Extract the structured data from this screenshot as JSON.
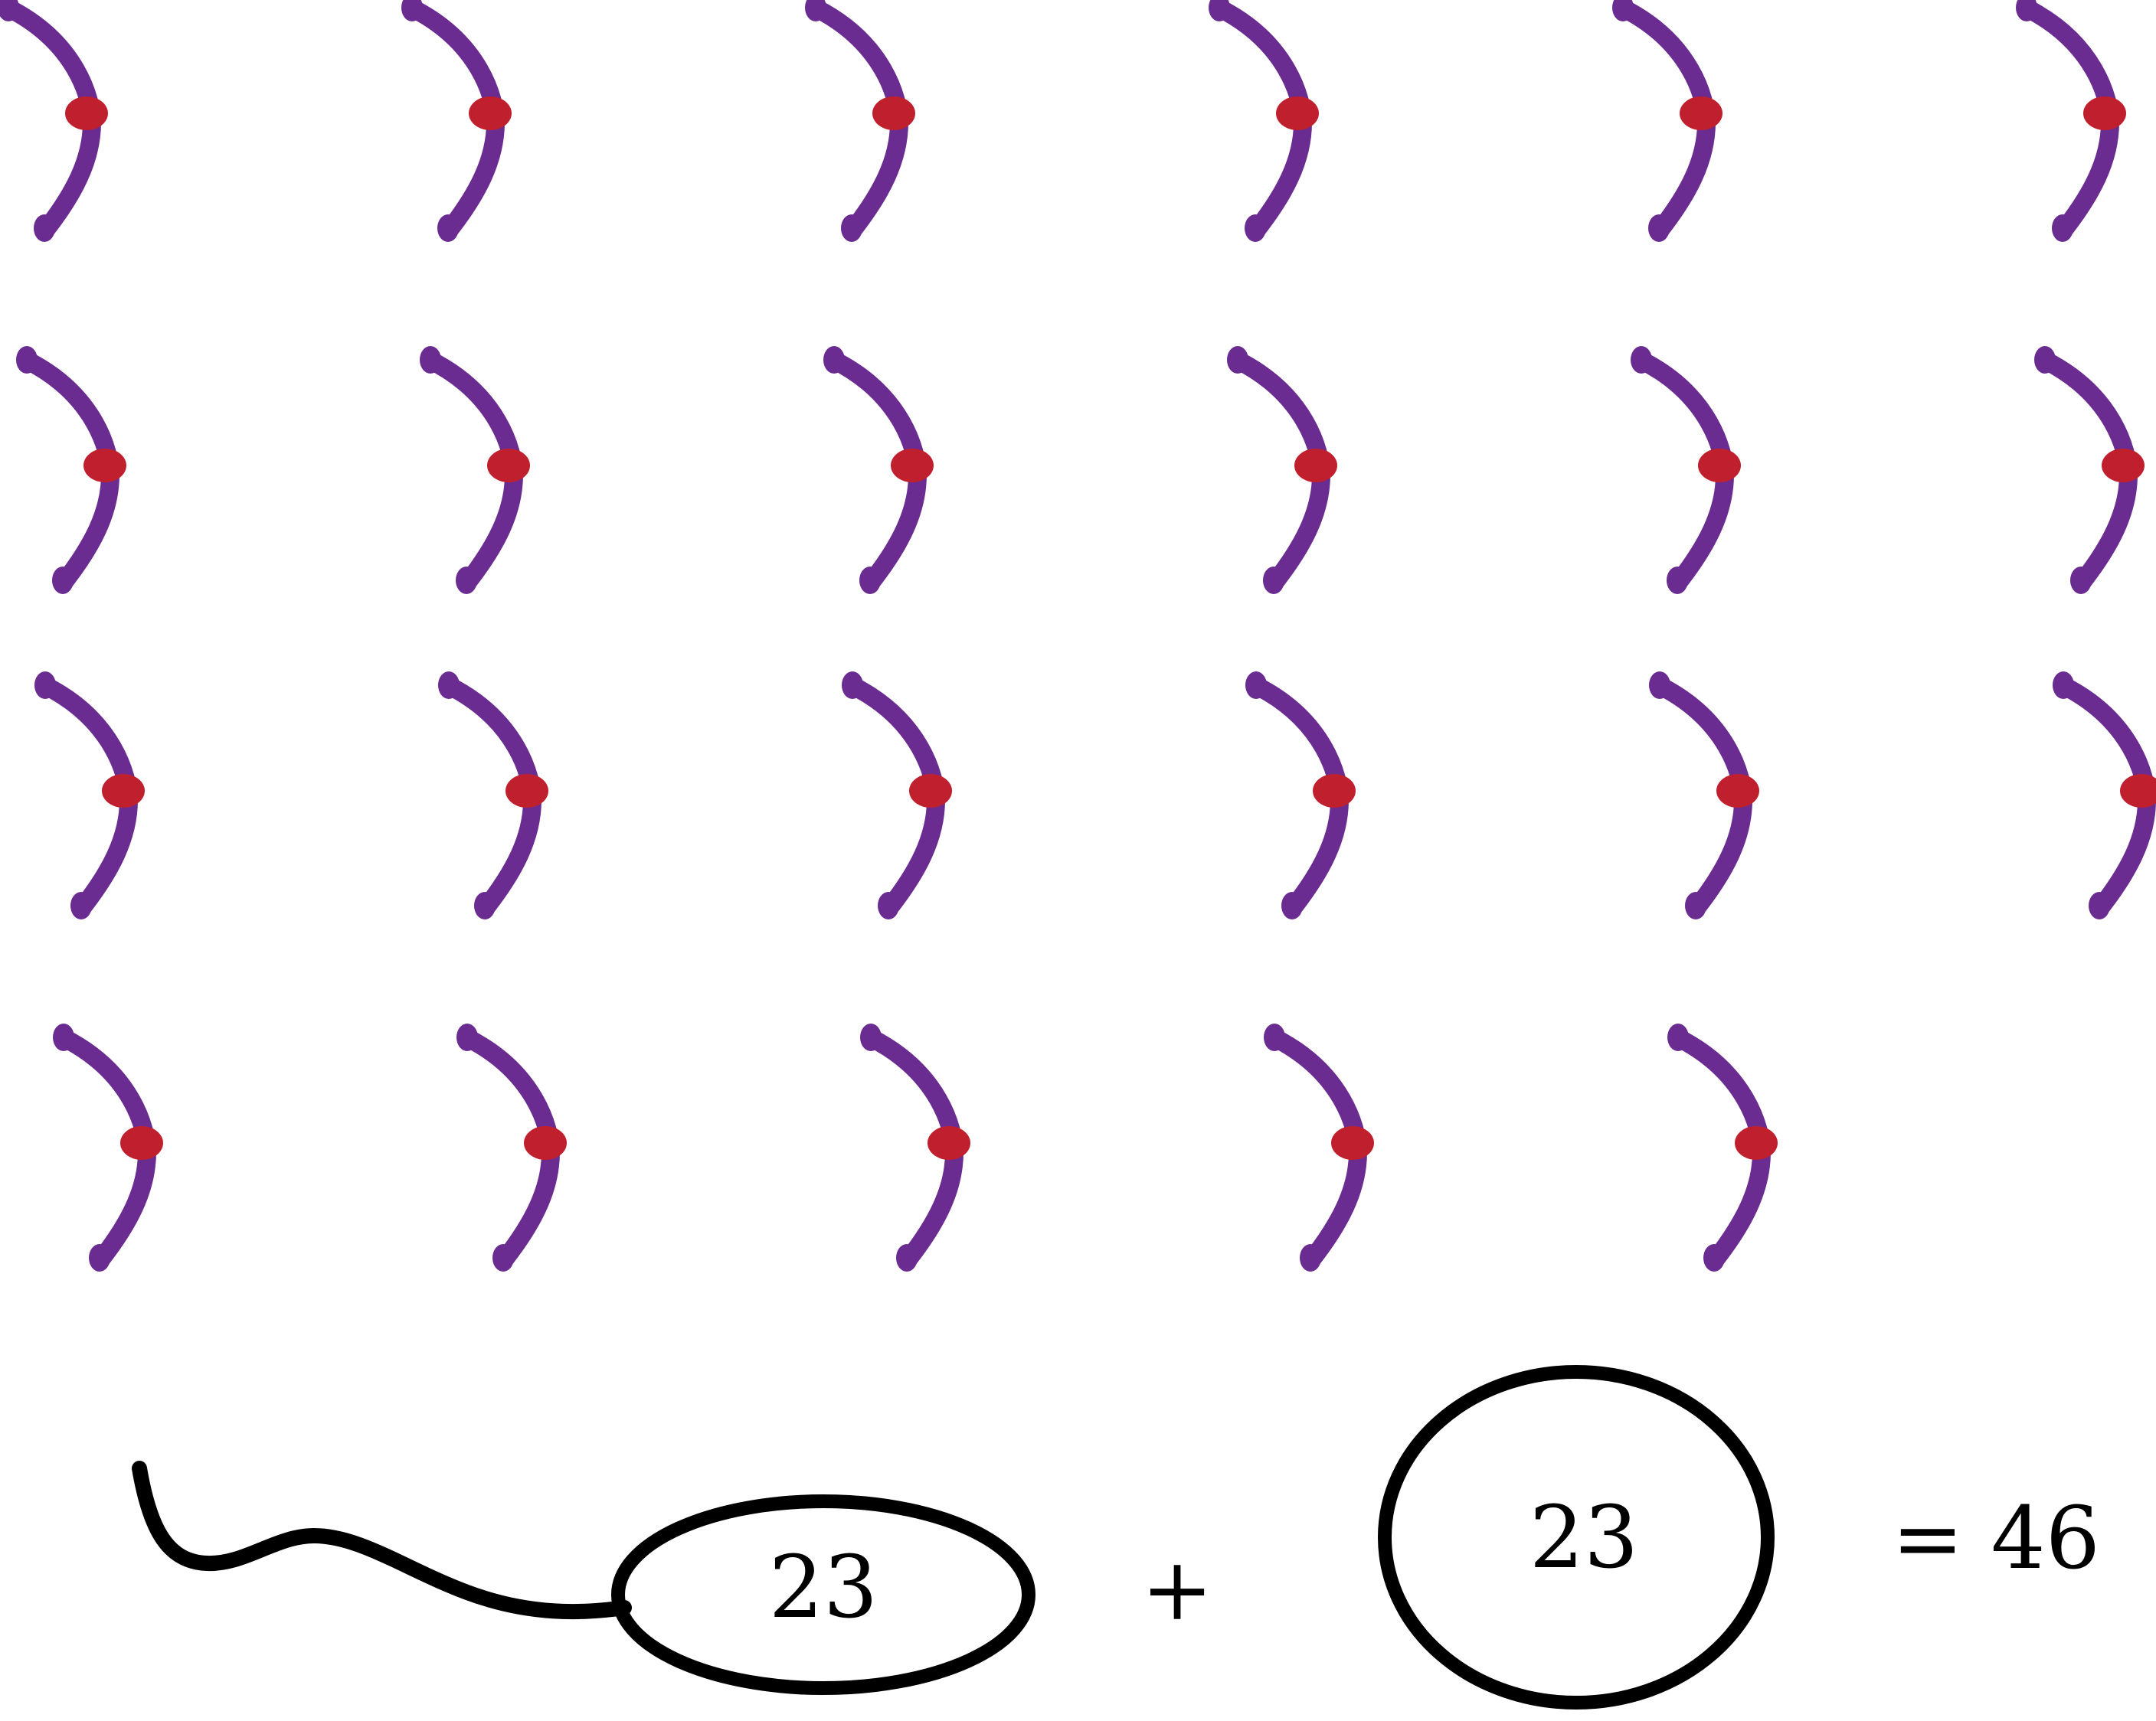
{
  "figure": {
    "rows": [
      {
        "count": 6
      },
      {
        "count": 6
      },
      {
        "count": 6
      },
      {
        "count": 5
      }
    ],
    "total_items": 23,
    "colors": {
      "arc": "#6A2C91",
      "dot": "#C0202E",
      "outline": "#000000"
    },
    "icon": "purple-arc-with-red-dot"
  },
  "equation": {
    "left_value": "23",
    "plus_sign": "+",
    "right_value": "23",
    "equals_sign": "=",
    "result": "46",
    "result_text": "= 46"
  }
}
